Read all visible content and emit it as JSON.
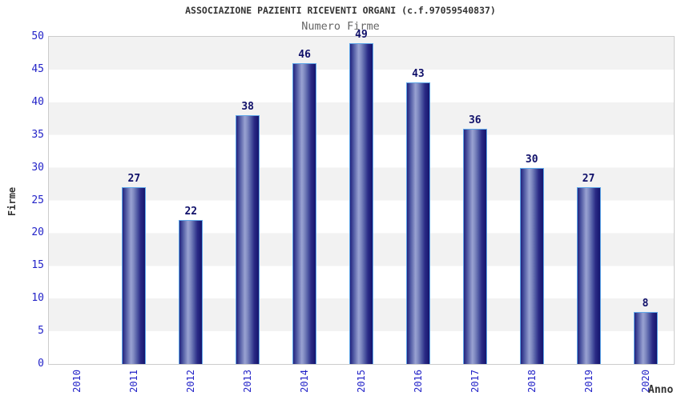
{
  "header": {
    "title": "ASSOCIAZIONE PAZIENTI RICEVENTI ORGANI (c.f.97059540837)",
    "subtitle": "Numero Firme"
  },
  "chart_data": {
    "type": "bar",
    "title": "ASSOCIAZIONE PAZIENTI RICEVENTI ORGANI (c.f.97059540837)",
    "subtitle": "Numero Firme",
    "categories": [
      "2010",
      "2011",
      "2012",
      "2013",
      "2014",
      "2015",
      "2016",
      "2017",
      "2018",
      "2019",
      "2020"
    ],
    "values": [
      0,
      27,
      22,
      38,
      46,
      49,
      43,
      36,
      30,
      27,
      8
    ],
    "xlabel": "Anno",
    "ylabel": "Firme",
    "ylim": [
      0,
      50
    ],
    "ytick_step": 5,
    "yticks": [
      0,
      5,
      10,
      15,
      20,
      25,
      30,
      35,
      40,
      45,
      50
    ],
    "grid": "alternating-horizontal-bands",
    "legend": "none",
    "colors": {
      "band_gray": "#f2f2f2",
      "plot_border": "#cccccc",
      "bar_edge_dark": "#1b1b78",
      "bar_highlight": "#99a2d2",
      "bar_border_light_blue": "#5ea6e8",
      "axis_tick_label_blue": "#2424c8",
      "value_label_navy": "#10106a",
      "title_color": "#333333",
      "subtitle_color": "#666666"
    }
  }
}
